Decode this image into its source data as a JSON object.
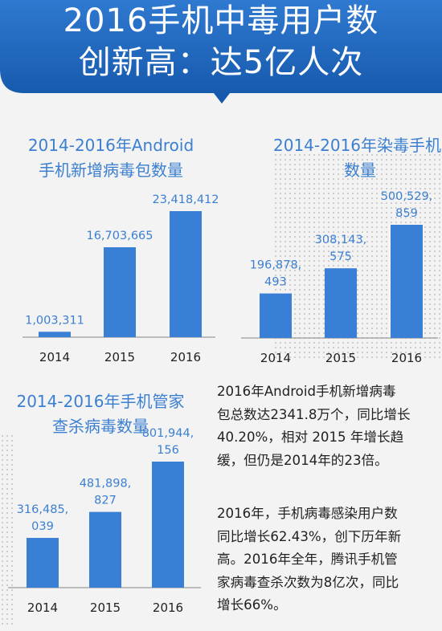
{
  "header": {
    "title_line1": "2016手机中毒用户数",
    "title_line2": "创新高：达5亿人次"
  },
  "chart_data": [
    {
      "type": "bar",
      "title_lines": [
        "2014-2016年Android",
        "手机新增病毒包数量"
      ],
      "categories": [
        "2014",
        "2015",
        "2016"
      ],
      "values": [
        1003311,
        16703665,
        23418412
      ],
      "value_labels": [
        [
          "1,003,311"
        ],
        [
          "16,703,665"
        ],
        [
          "23,418,412"
        ]
      ]
    },
    {
      "type": "bar",
      "title_lines": [
        "2014-2016年染毒手机",
        "数量"
      ],
      "categories": [
        "2014",
        "2015",
        "2016"
      ],
      "values": [
        196878493,
        308143575,
        500529859
      ],
      "value_labels": [
        [
          "196,878,",
          "493"
        ],
        [
          "308,143,",
          "575"
        ],
        [
          "500,529,",
          "859"
        ]
      ]
    },
    {
      "type": "bar",
      "title_lines": [
        "2014-2016年手机管家",
        "查杀病毒数量"
      ],
      "categories": [
        "2014",
        "2015",
        "2016"
      ],
      "values": [
        316485039,
        481898827,
        801944156
      ],
      "value_labels": [
        [
          "316,485,",
          "039"
        ],
        [
          "481,898,",
          "827"
        ],
        [
          "801,944,",
          "156"
        ]
      ]
    }
  ],
  "text_paragraph1": [
    "2016年Android手机新增病毒",
    "包总数达2341.8万个，同比增长",
    "40.20%，相对 2015 年增长趋",
    "缓，但仍是2014年的23倍。"
  ],
  "text_paragraph2": [
    "2016年，手机病毒感染用户数",
    "同比增长62.43%，创下历年新",
    "高。2016年全年，腾讯手机管",
    "家病毒查杀次数为8亿次，同比",
    "增长66%。"
  ],
  "colors": {
    "header": "#1c5fb8",
    "bar": "#3a7fd6",
    "title_text": "#3c7fd1"
  }
}
